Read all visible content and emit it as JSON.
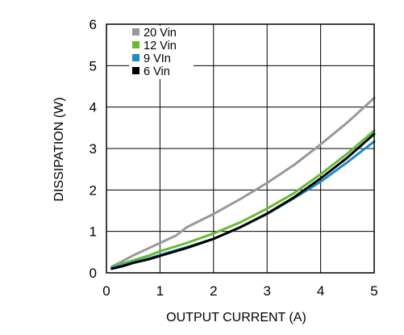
{
  "chart_data": {
    "type": "line",
    "title": "",
    "xlabel": "OUTPUT CURRENT (A)",
    "ylabel": "DISSIPATION (W)",
    "xlim": [
      0,
      5
    ],
    "ylim": [
      0,
      6
    ],
    "xticks": [
      0,
      1,
      2,
      3,
      4,
      5
    ],
    "yticks": [
      0,
      1,
      2,
      3,
      4,
      5,
      6
    ],
    "grid": true,
    "legend_position": "top-left",
    "series": [
      {
        "name": "20 Vin",
        "color": "#999999",
        "x": [
          0.1,
          0.3,
          0.5,
          0.8,
          1.0,
          1.3,
          1.5,
          2.0,
          2.5,
          3.0,
          3.5,
          4.0,
          4.5,
          5.0
        ],
        "y": [
          0.15,
          0.28,
          0.42,
          0.6,
          0.72,
          0.9,
          1.1,
          1.42,
          1.78,
          2.17,
          2.6,
          3.1,
          3.63,
          4.22
        ]
      },
      {
        "name": "12 Vin",
        "color": "#66bb33",
        "x": [
          0.1,
          0.3,
          0.5,
          0.8,
          1.0,
          1.5,
          2.0,
          2.5,
          3.0,
          3.5,
          4.0,
          4.5,
          5.0
        ],
        "y": [
          0.13,
          0.22,
          0.3,
          0.42,
          0.52,
          0.72,
          0.95,
          1.22,
          1.55,
          1.92,
          2.38,
          2.88,
          3.43
        ]
      },
      {
        "name": "9 VIn",
        "color": "#1a8ac8",
        "x": [
          0.1,
          0.3,
          0.5,
          0.8,
          1.0,
          1.5,
          2.0,
          2.5,
          3.0,
          3.5,
          4.0,
          4.5,
          5.0
        ],
        "y": [
          0.12,
          0.18,
          0.25,
          0.35,
          0.43,
          0.62,
          0.82,
          1.1,
          1.42,
          1.8,
          2.2,
          2.67,
          3.17
        ]
      },
      {
        "name": "6 Vin",
        "color": "#000000",
        "x": [
          0.1,
          0.3,
          0.5,
          0.8,
          1.0,
          1.5,
          2.0,
          2.5,
          3.0,
          3.5,
          4.0,
          4.5,
          5.0
        ],
        "y": [
          0.1,
          0.16,
          0.24,
          0.33,
          0.41,
          0.6,
          0.82,
          1.1,
          1.43,
          1.82,
          2.28,
          2.78,
          3.35
        ]
      }
    ]
  }
}
